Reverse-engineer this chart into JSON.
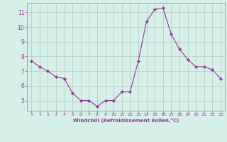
{
  "x": [
    0,
    1,
    2,
    3,
    4,
    5,
    6,
    7,
    8,
    9,
    10,
    11,
    12,
    13,
    14,
    15,
    16,
    17,
    18,
    19,
    20,
    21,
    22,
    23
  ],
  "y": [
    7.7,
    7.3,
    7.0,
    6.6,
    6.5,
    5.5,
    5.0,
    5.0,
    4.6,
    5.0,
    5.0,
    5.6,
    5.6,
    7.7,
    10.4,
    11.2,
    11.3,
    9.5,
    8.5,
    7.8,
    7.3,
    7.3,
    7.1,
    6.5
  ],
  "line_color": "#993399",
  "marker": "D",
  "marker_size": 2,
  "bg_color": "#d5f0e8",
  "grid_color": "#b0c8c0",
  "xlabel": "Windchill (Refroidissement éolien,°C)",
  "xlabel_color": "#993399",
  "tick_color": "#993399",
  "xlim": [
    -0.5,
    23.5
  ],
  "ylim": [
    4.3,
    11.65
  ],
  "yticks": [
    5,
    6,
    7,
    8,
    9,
    10,
    11
  ],
  "xticks": [
    0,
    1,
    2,
    3,
    4,
    5,
    6,
    7,
    8,
    9,
    10,
    11,
    12,
    13,
    14,
    15,
    16,
    17,
    18,
    19,
    20,
    21,
    22,
    23
  ],
  "spine_color": "#888888"
}
